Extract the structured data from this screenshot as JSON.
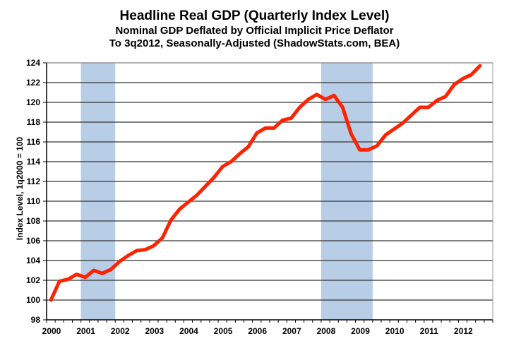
{
  "chart_data": {
    "type": "line",
    "title": "Headline Real GDP (Quarterly Index Level)",
    "subtitle_1": "Nominal GDP Deflated by Official Implicit Price Deflator",
    "subtitle_2": "To 3q2012, Seasonally-Adjusted (ShadowStats.com, BEA)",
    "xlabel": "",
    "ylabel": "Index Level, 1q2000 = 100",
    "ylim": [
      98,
      124
    ],
    "yticks": [
      "98",
      "100",
      "102",
      "104",
      "106",
      "108",
      "110",
      "112",
      "114",
      "116",
      "118",
      "120",
      "122",
      "124"
    ],
    "xticks": [
      "2000",
      "2001",
      "2002",
      "2003",
      "2004",
      "2005",
      "2006",
      "2007",
      "2008",
      "2009",
      "2010",
      "2011",
      "2012"
    ],
    "grid": true,
    "line_color": "#ff2200",
    "recession_color": "#b8cde6",
    "recessions": [
      {
        "start_quarter_index": 4,
        "end_quarter_index": 8
      },
      {
        "start_quarter_index": 32,
        "end_quarter_index": 38
      }
    ],
    "series": [
      {
        "name": "Headline Real GDP",
        "values": [
          100.0,
          101.9,
          102.1,
          102.6,
          102.3,
          103.0,
          102.7,
          103.1,
          103.9,
          104.5,
          105.0,
          105.1,
          105.5,
          106.3,
          108.1,
          109.2,
          109.9,
          110.6,
          111.5,
          112.4,
          113.5,
          114.0,
          114.8,
          115.5,
          116.9,
          117.4,
          117.4,
          118.2,
          118.4,
          119.5,
          120.3,
          120.8,
          120.3,
          120.7,
          119.5,
          116.8,
          115.2,
          115.2,
          115.6,
          116.7,
          117.3,
          117.9,
          118.7,
          119.5,
          119.5,
          120.2,
          120.6,
          121.8,
          122.4,
          122.8,
          123.7
        ]
      }
    ]
  }
}
